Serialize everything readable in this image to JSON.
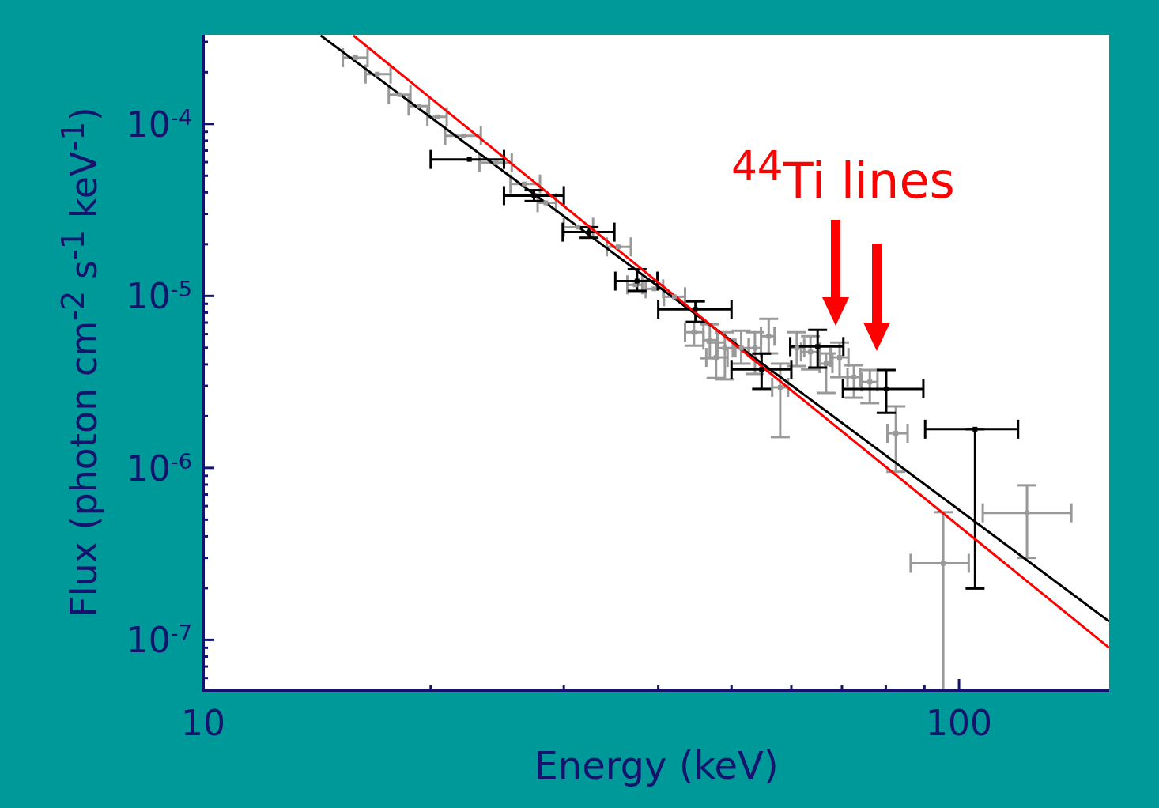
{
  "chart_data": {
    "type": "scatter",
    "xlabel": "Energy (keV)",
    "ylabel": "Flux (photon cm$^{-2}$ s$^{-1}$ keV$^{-1}$)",
    "annotations": [
      "$^{44}$Ti lines"
    ],
    "log": "xy",
    "grid": false,
    "legend": false,
    "marker": "square",
    "line_style": "solid",
    "xlim": [
      10,
      158
    ],
    "ylim": [
      5.1e-08,
      0.00033
    ],
    "xticks": [
      10,
      {
        "value": 20,
        "label": null
      },
      {
        "value": 30,
        "label": null
      },
      {
        "value": 40,
        "label": null
      },
      {
        "value": 50,
        "label": null
      },
      {
        "value": 60,
        "label": null
      },
      {
        "value": 70,
        "label": null
      },
      {
        "value": 80,
        "label": null
      },
      {
        "value": 90,
        "label": null
      },
      100
    ],
    "yticks": [
      {
        "value": 6e-08,
        "label": null
      },
      {
        "value": 7e-08,
        "label": null
      },
      {
        "value": 8e-08,
        "label": null
      },
      {
        "value": 9e-08,
        "label": null
      },
      {
        "value": 1e-07,
        "label": "10$^{-7}$"
      },
      {
        "value": 2e-07,
        "label": null
      },
      {
        "value": 3e-07,
        "label": null
      },
      {
        "value": 4e-07,
        "label": null
      },
      {
        "value": 5e-07,
        "label": null
      },
      {
        "value": 6e-07,
        "label": null
      },
      {
        "value": 7e-07,
        "label": null
      },
      {
        "value": 8e-07,
        "label": null
      },
      {
        "value": 9e-07,
        "label": null
      },
      {
        "value": 1e-06,
        "label": "10$^{-6}$"
      },
      {
        "value": 2e-06,
        "label": null
      },
      {
        "value": 3e-06,
        "label": null
      },
      {
        "value": 4e-06,
        "label": null
      },
      {
        "value": 5e-06,
        "label": null
      },
      {
        "value": 6e-06,
        "label": null
      },
      {
        "value": 7e-06,
        "label": null
      },
      {
        "value": 8e-06,
        "label": null
      },
      {
        "value": 9e-06,
        "label": null
      },
      {
        "value": 1e-05,
        "label": "10$^{-5}$"
      },
      {
        "value": 2e-05,
        "label": null
      },
      {
        "value": 3e-05,
        "label": null
      },
      {
        "value": 4e-05,
        "label": null
      },
      {
        "value": 5e-05,
        "label": null
      },
      {
        "value": 6e-05,
        "label": null
      },
      {
        "value": 7e-05,
        "label": null
      },
      {
        "value": 8e-05,
        "label": null
      },
      {
        "value": 9e-05,
        "label": null
      },
      {
        "value": 0.0001,
        "label": "10$^{-4}$"
      },
      {
        "value": 0.0002,
        "label": null
      },
      {
        "value": 0.0003,
        "label": null
      }
    ],
    "series": [
      {
        "color": "#999999",
        "x": [
          15.9,
          17.0,
          18.2,
          19.3,
          20.4,
          22.1,
          24.4,
          26.6,
          28.4,
          31.3,
          35.4,
          37.3,
          39.5,
          42.0,
          44.6,
          46.8,
          47.7,
          49.0,
          51.5,
          53.7,
          56.0,
          58.0,
          61.0,
          63.6,
          66.7,
          69.5,
          72.6,
          76.2,
          82.5,
          95.3,
          123
        ],
        "values": [
          0.000243,
          0.000195,
          0.000148,
          0.000127,
          0.00011,
          8.53e-05,
          5.96e-05,
          4.48e-05,
          3.48e-05,
          2.51e-05,
          1.93e-05,
          1.16e-05,
          1.1e-05,
          9.89e-06,
          6.15e-06,
          5.53e-06,
          4.39e-06,
          4.98e-06,
          4.98e-06,
          4.98e-06,
          5.83e-06,
          2.94e-06,
          4.98e-06,
          4.72e-06,
          4.04e-06,
          4.39e-06,
          3.37e-06,
          3.16e-06,
          1.59e-06,
          2.79e-07,
          5.48e-07
        ],
        "xerrors": [
          [
            15.3,
            16.5
          ],
          [
            16.4,
            17.7
          ],
          [
            17.6,
            18.8
          ],
          [
            18.7,
            19.9
          ],
          [
            19.8,
            21.0
          ],
          [
            20.9,
            23.3
          ],
          [
            23.2,
            25.6
          ],
          [
            25.5,
            27.9
          ],
          [
            27.7,
            29.3
          ],
          [
            30.0,
            32.8
          ],
          [
            34.2,
            36.8
          ],
          [
            36.4,
            38.1
          ],
          [
            38.5,
            40.6
          ],
          [
            40.7,
            43.4
          ],
          [
            43.4,
            45.9
          ],
          [
            45.9,
            47.9
          ],
          [
            46.3,
            49.4
          ],
          [
            47.9,
            50.2
          ],
          [
            50.6,
            52.7
          ],
          [
            52.7,
            54.7
          ],
          [
            54.7,
            57.0
          ],
          [
            56.6,
            59.4
          ],
          [
            59.8,
            62.4
          ],
          [
            61.8,
            65.4
          ],
          [
            65.4,
            68.0
          ],
          [
            67.6,
            71.4
          ],
          [
            71.2,
            74.0
          ],
          [
            74.3,
            78.0
          ],
          [
            80.4,
            85.5
          ],
          [
            86.3,
            103
          ],
          [
            107.5,
            140.8
          ]
        ],
        "errors": [
          null,
          null,
          null,
          null,
          null,
          null,
          null,
          null,
          null,
          null,
          null,
          null,
          null,
          null,
          [
            5.14e-06,
            7.06e-06
          ],
          [
            4.34e-06,
            6.84e-06
          ],
          [
            3.33e-06,
            5.36e-06
          ],
          [
            3.27e-06,
            6.15e-06
          ],
          [
            4.04e-06,
            6.28e-06
          ],
          [
            3.52e-06,
            6.15e-06
          ],
          [
            4.63e-06,
            7.36e-06
          ],
          [
            1.51e-06,
            4.04e-06
          ],
          [
            3.91e-06,
            6.15e-06
          ],
          [
            3.74e-06,
            5.83e-06
          ],
          [
            2.73e-06,
            4.63e-06
          ],
          [
            3.37e-06,
            5.36e-06
          ],
          [
            2.56e-06,
            3.95e-06
          ],
          [
            2.38e-06,
            3.71e-06
          ],
          [
            9.5e-07,
            2.28e-06
          ],
          [
            5.1e-08,
            5.53e-07
          ],
          [
            3e-07,
            7.92e-07
          ]
        ]
      },
      {
        "color": "#000000",
        "x": [
          22.5,
          27.4,
          32.4,
          37.5,
          44.8,
          54.8,
          65.0,
          80.1,
          105
        ],
        "values": [
          6.22e-05,
          3.83e-05,
          2.35e-05,
          1.22e-05,
          8.36e-06,
          3.74e-06,
          5.08e-06,
          2.88e-06,
          1.68e-06
        ],
        "xerrors": [
          [
            20.0,
            25.0
          ],
          [
            25.0,
            30.0
          ],
          [
            29.9,
            35.0
          ],
          [
            35.1,
            39.9
          ],
          [
            40.0,
            50.0
          ],
          [
            50.0,
            60.0
          ],
          [
            59.8,
            70.3
          ],
          [
            70.2,
            89.7
          ],
          [
            90.2,
            119.7
          ]
        ],
        "errors": [
          null,
          [
            3.56e-05,
            4.12e-05
          ],
          [
            2.18e-05,
            2.51e-05
          ],
          [
            1.07e-05,
            1.43e-05
          ],
          [
            7.06e-06,
            9.3e-06
          ],
          [
            2.88e-06,
            4.62e-06
          ],
          [
            3.83e-06,
            6.35e-06
          ],
          [
            2.09e-06,
            3.71e-06
          ],
          [
            1.99e-07,
            1.68e-06
          ]
        ]
      },
      {
        "type": "line",
        "marker": "none",
        "color": "#000000",
        "x": [
          14.3,
          158
        ],
        "values": [
          0.000327,
          1.28e-07
        ]
      },
      {
        "type": "line",
        "marker": "none",
        "color": "#ff0000",
        "x": [
          15.8,
          158
        ],
        "values": [
          0.000327,
          9e-08
        ]
      }
    ]
  }
}
